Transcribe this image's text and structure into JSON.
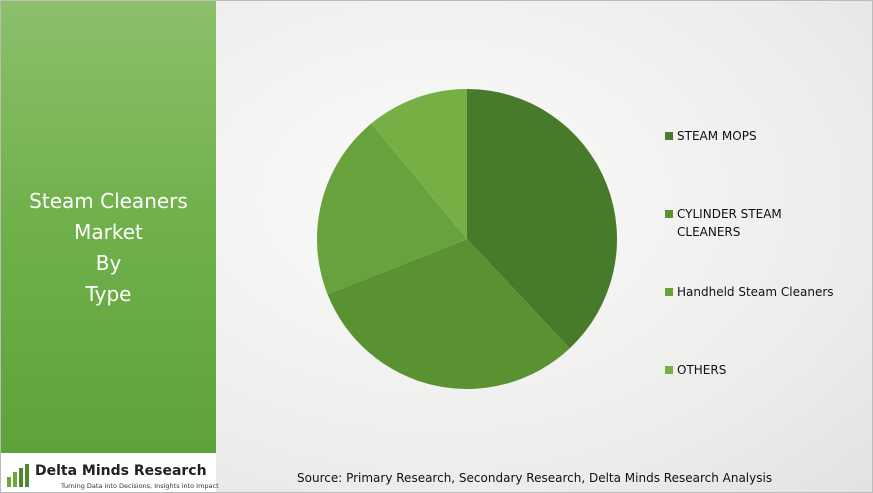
{
  "panel": {
    "title_lines": [
      "Steam Cleaners",
      "Market",
      "By",
      "Type"
    ]
  },
  "logo": {
    "name": "Delta Minds Research",
    "tagline": "Turning Data into Decisions, Insights into Impact"
  },
  "source": "Source: Primary Research, Secondary Research, Delta Minds Research Analysis",
  "chart_data": {
    "type": "pie",
    "categories": [
      "STEAM MOPS",
      "CYLINDER STEAM CLEANERS",
      "Handheld Steam Cleaners",
      "OTHERS"
    ],
    "values": [
      38,
      31,
      20,
      11
    ],
    "colors": [
      "#487a2b",
      "#5a9232",
      "#68a23c",
      "#76b045"
    ],
    "legend": "right"
  }
}
